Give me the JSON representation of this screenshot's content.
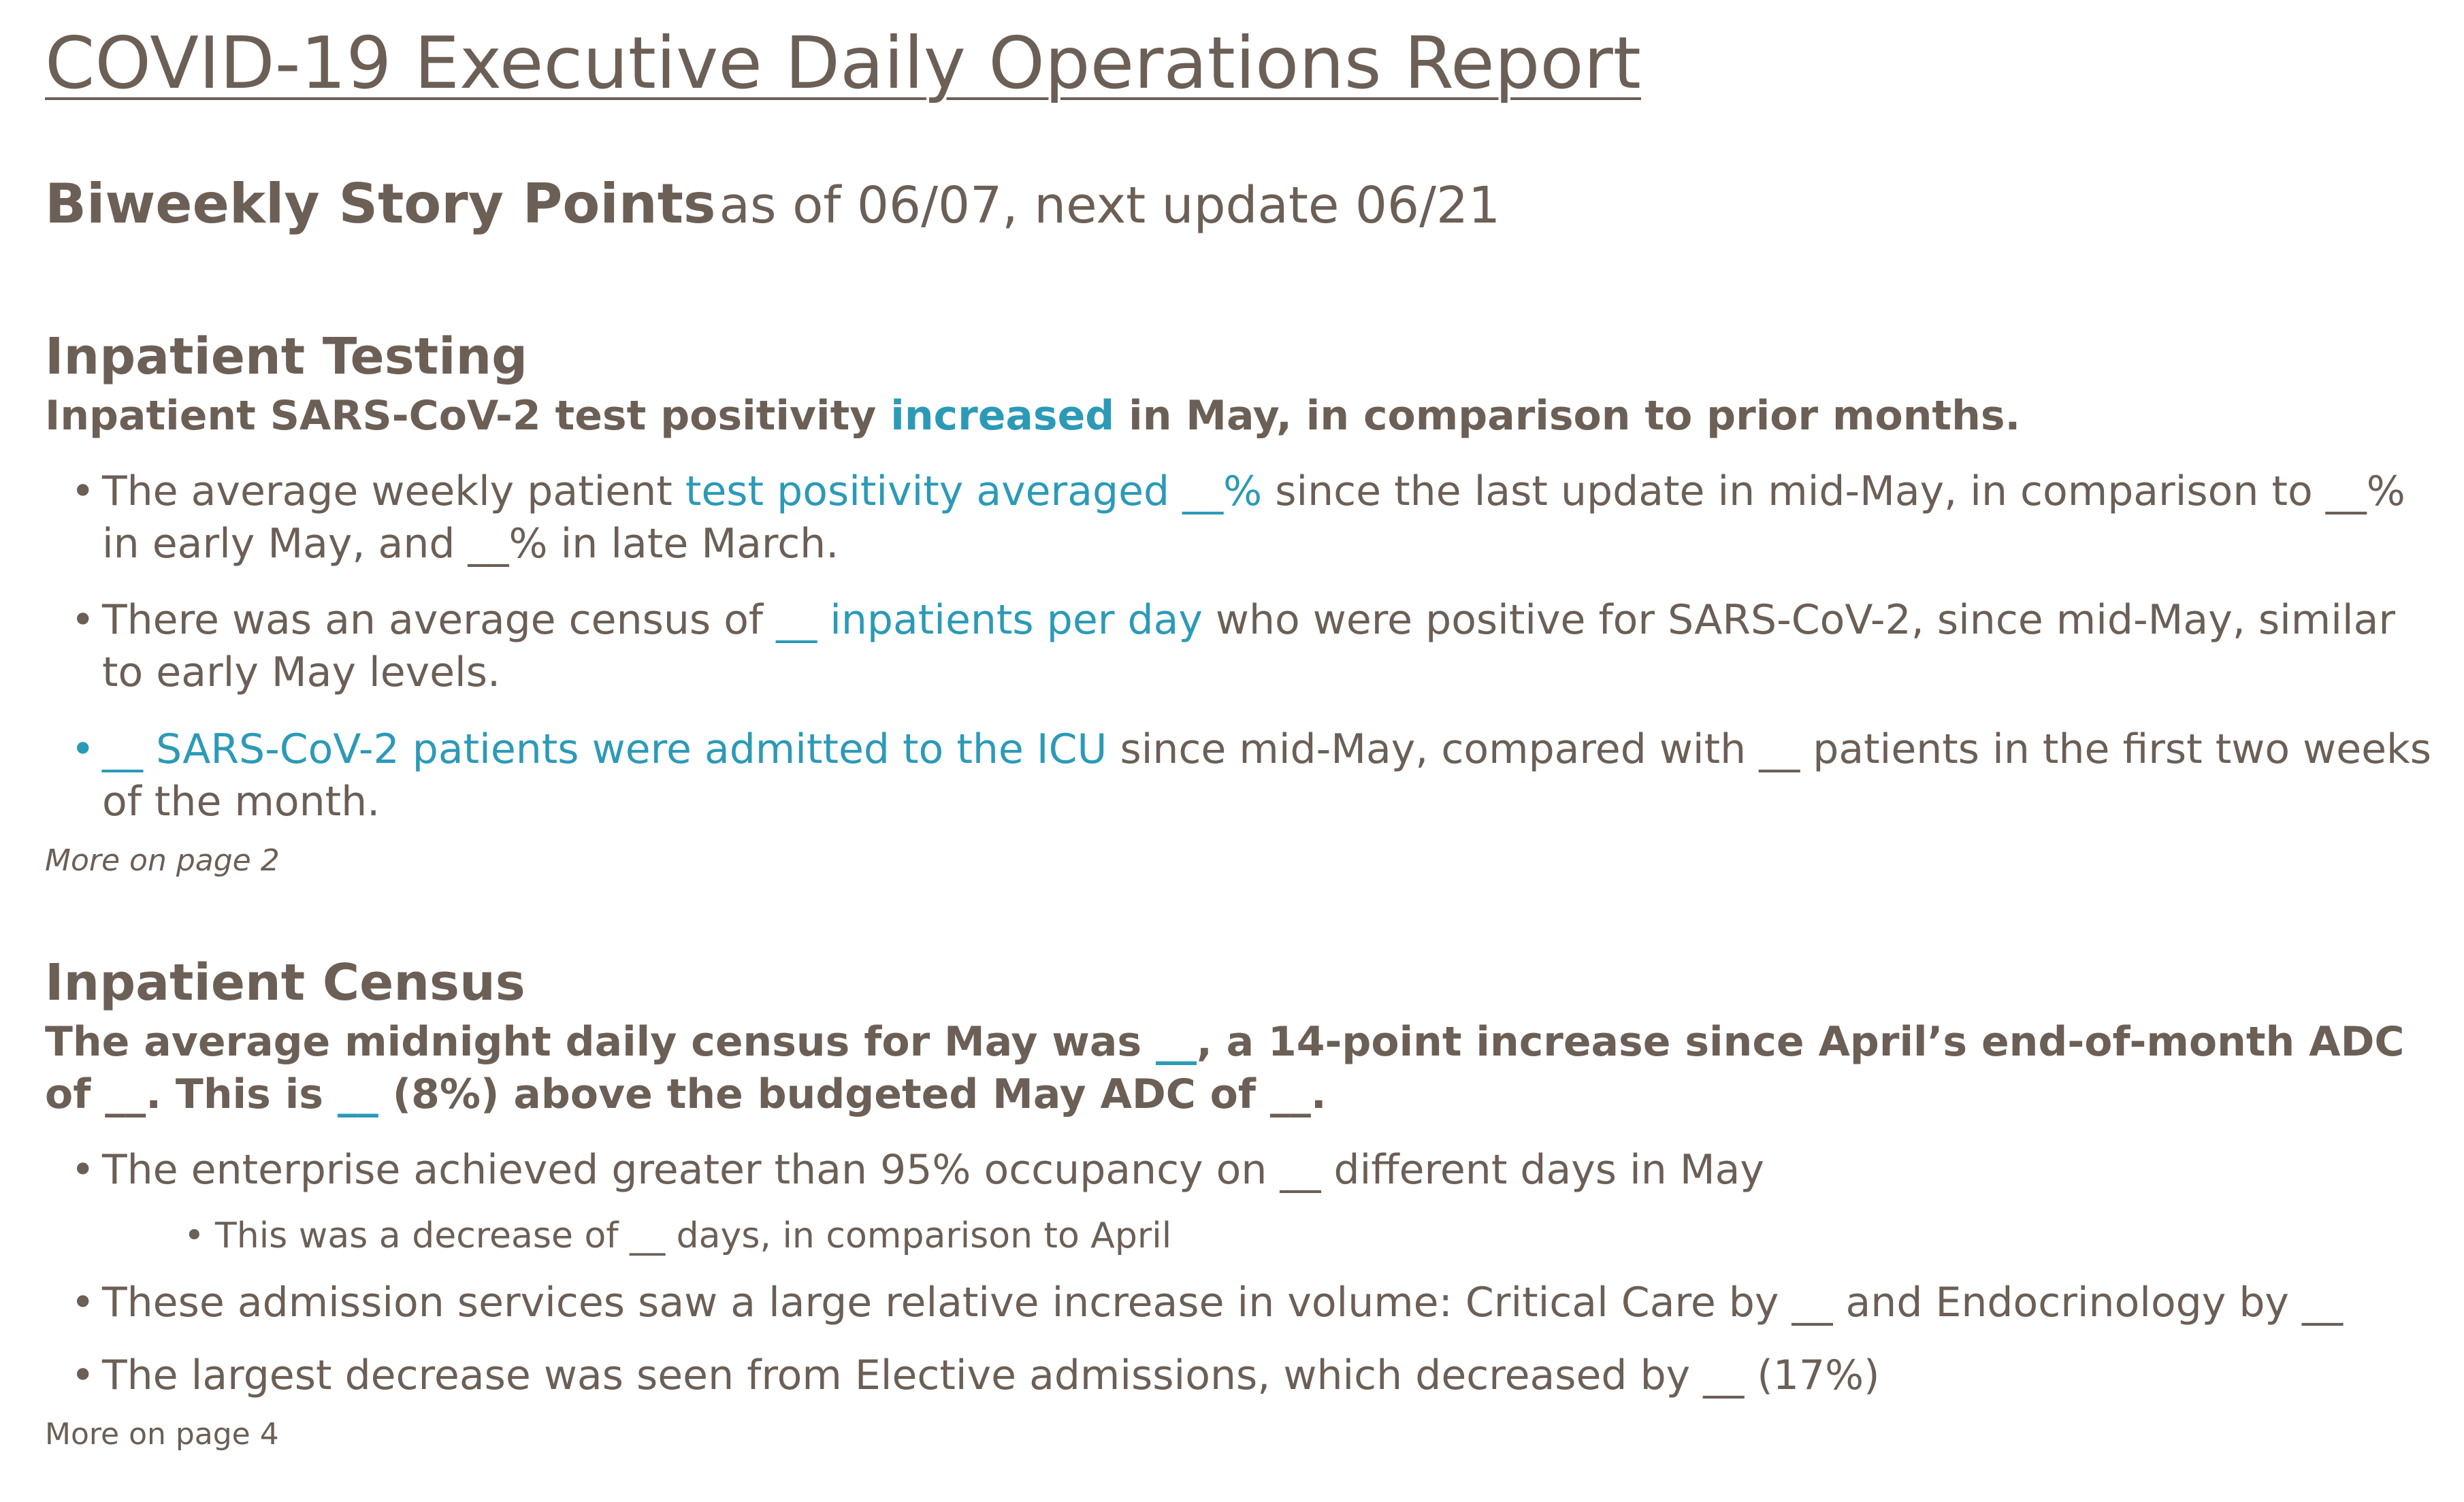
{
  "report": {
    "title": "COVID-19 Executive Daily Operations Report",
    "story_points": {
      "label": "Biweekly Story Points",
      "as_of": "as of 06/07, next update 06/21"
    }
  },
  "testing": {
    "title": "Inpatient Testing",
    "lead": {
      "before": "Inpatient SARS-CoV-2 test positivity ",
      "highlight": "increased",
      "after": " in May, in comparison to prior months."
    },
    "bullets": [
      {
        "before": "The average weekly patient ",
        "highlight": "test positivity averaged __%",
        "after": " since the last update in mid-May, in comparison to __% in early May, and __% in late March."
      },
      {
        "before": "There was an average census of ",
        "highlight": "__ inpatients per day",
        "after": " who were positive for SARS-CoV-2, since mid-May, similar to early May levels."
      },
      {
        "before": "",
        "highlight": "__ SARS-CoV-2 patients were admitted to the ICU",
        "after": " since mid-May, compared with __ patients in the first two weeks of the month."
      }
    ],
    "more": "More on page 2"
  },
  "census": {
    "title": "Inpatient Census",
    "lead": {
      "part1": "The average midnight daily census for May was ",
      "highlight1": "__",
      "part2": ", a 14-point increase since April’s end-of-month ADC of __. This is ",
      "highlight2": "__",
      "part3": " (8%) above the budgeted May ADC of __."
    },
    "bullets": [
      "The enterprise achieved greater than 95% occupancy on __ different days in May",
      "These admission services saw a large relative increase in volume: Critical Care by __ and Endocrinology by __",
      "The largest decrease was seen from Elective admissions, which decreased by __ (17%)"
    ],
    "sub_bullet": "This was a decrease of __ days, in comparison to April",
    "more": "More on page 4"
  },
  "colors": {
    "text": "#6b5f56",
    "accent": "#2c9ab7"
  }
}
